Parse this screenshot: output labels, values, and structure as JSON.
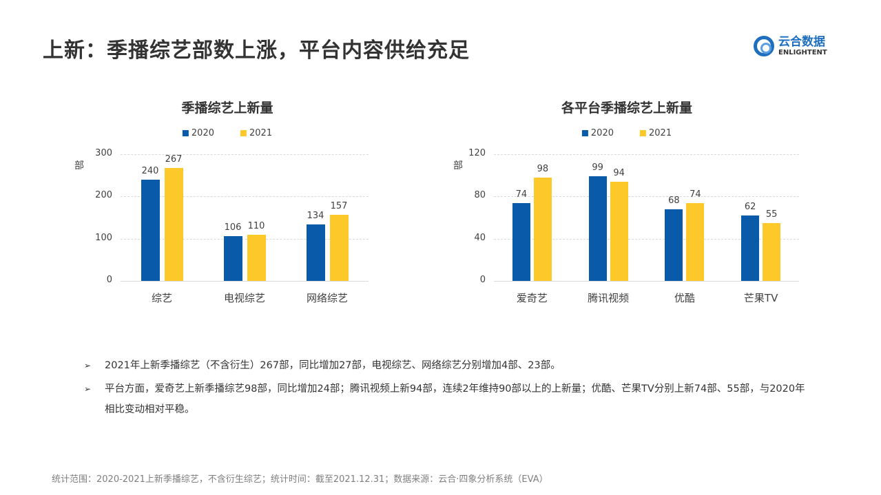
{
  "header": {
    "title": "上新：季播综艺部数上涨，平台内容供给充足",
    "logo": {
      "cn": "云合数据",
      "en": "ENLIGHTENT",
      "icon": "ring-logo-icon"
    }
  },
  "colors": {
    "series_2020": "#0a5aaa",
    "series_2021": "#fdc82a"
  },
  "chart_data": [
    {
      "type": "bar",
      "title": "季播综艺上新量",
      "ylabel": "部",
      "xlabel": "",
      "categories": [
        "综艺",
        "电视综艺",
        "网络综艺"
      ],
      "series": [
        {
          "name": "2020",
          "values": [
            240,
            106,
            134
          ]
        },
        {
          "name": "2021",
          "values": [
            267,
            110,
            157
          ]
        }
      ],
      "ylim": [
        0,
        300
      ],
      "yticks": [
        0,
        100,
        200,
        300
      ],
      "grid": true,
      "legend_position": "top"
    },
    {
      "type": "bar",
      "title": "各平台季播综艺上新量",
      "ylabel": "部",
      "xlabel": "",
      "categories": [
        "爱奇艺",
        "腾讯视频",
        "优酷",
        "芒果TV"
      ],
      "series": [
        {
          "name": "2020",
          "values": [
            74,
            99,
            68,
            62
          ]
        },
        {
          "name": "2021",
          "values": [
            98,
            94,
            74,
            55
          ]
        }
      ],
      "ylim": [
        0,
        120
      ],
      "yticks": [
        0,
        40,
        80,
        120
      ],
      "grid": true,
      "legend_position": "top"
    }
  ],
  "bullets": [
    "2021年上新季播综艺（不含衍生）267部，同比增加27部，电视综艺、网络综艺分别增加4部、23部。",
    "平台方面，爱奇艺上新季播综艺98部，同比增加24部；腾讯视频上新94部，连续2年维持90部以上的上新量；优酷、芒果TV分别上新74部、55部，与2020年相比变动相对平稳。"
  ],
  "bullet_icon": "arrow-bullet-icon",
  "bullet_mark": "➢",
  "footer": "统计范围：2020-2021上新季播综艺，不含衍生综艺；统计时间：截至2021.12.31；数据来源：云合·四象分析系统（EVA）"
}
